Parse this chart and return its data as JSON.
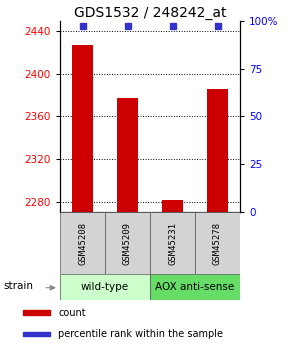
{
  "title": "GDS1532 / 248242_at",
  "samples": [
    "GSM45208",
    "GSM45209",
    "GSM45231",
    "GSM45278"
  ],
  "counts": [
    2427,
    2377,
    2281,
    2386
  ],
  "percentiles": [
    97,
    97,
    97,
    97
  ],
  "ylim_left": [
    2270,
    2450
  ],
  "ylim_right": [
    0,
    100
  ],
  "yticks_left": [
    2280,
    2320,
    2360,
    2400,
    2440
  ],
  "yticks_right": [
    0,
    25,
    50,
    75,
    100
  ],
  "ytick_labels_right": [
    "0",
    "25",
    "50",
    "75",
    "100%"
  ],
  "bar_color": "#cc0000",
  "dot_color": "#3333cc",
  "bar_bottom": 2270,
  "groups": [
    {
      "label": "wild-type",
      "indices": [
        0,
        1
      ],
      "color": "#ccffcc"
    },
    {
      "label": "AOX anti-sense",
      "indices": [
        2,
        3
      ],
      "color": "#66dd66"
    }
  ],
  "strain_label": "strain",
  "legend_items": [
    {
      "color": "#cc0000",
      "label": "count"
    },
    {
      "color": "#3333cc",
      "label": "percentile rank within the sample"
    }
  ],
  "background_color": "#ffffff",
  "title_fontsize": 10,
  "tick_fontsize": 7.5,
  "sample_fontsize": 6.5,
  "group_fontsize": 7.5,
  "legend_fontsize": 7,
  "strain_fontsize": 7.5
}
